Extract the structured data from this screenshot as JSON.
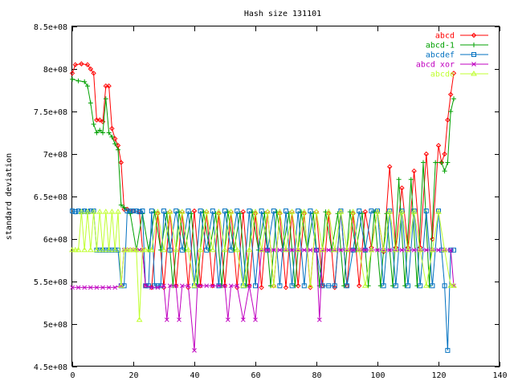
{
  "chart_data": {
    "type": "line",
    "title": "Hash size 131101",
    "xlabel": "",
    "ylabel": "standard deviation",
    "xlim": [
      0,
      140
    ],
    "ylim": [
      450000000,
      850000000
    ],
    "x_ticks": [
      0,
      20,
      40,
      60,
      80,
      100,
      120,
      140
    ],
    "x_tick_labels": [
      "0",
      "20",
      "40",
      "60",
      "80",
      "100",
      "120",
      "140"
    ],
    "y_ticks": [
      450000000,
      500000000,
      550000000,
      600000000,
      650000000,
      700000000,
      750000000,
      800000000,
      850000000
    ],
    "y_tick_labels": [
      "4.5e+08",
      "5e+08",
      "5.5e+08",
      "6e+08",
      "6.5e+08",
      "7e+08",
      "7.5e+08",
      "8e+08",
      "8.5e+08"
    ],
    "grid": false,
    "legend_position": "top-right",
    "series": [
      {
        "name": "abcd",
        "color": "#ff0000",
        "marker": "diamond",
        "x": [
          0,
          1,
          3,
          5,
          6,
          7,
          8,
          9,
          10,
          11,
          12,
          13,
          14,
          15,
          16,
          17,
          18,
          20,
          22,
          24,
          26,
          28,
          30,
          32,
          34,
          36,
          38,
          40,
          42,
          44,
          46,
          48,
          50,
          52,
          54,
          56,
          58,
          60,
          62,
          64,
          66,
          68,
          70,
          72,
          74,
          76,
          78,
          80,
          82,
          84,
          86,
          88,
          90,
          92,
          94,
          96,
          98,
          100,
          102,
          104,
          106,
          108,
          110,
          112,
          114,
          116,
          118,
          120,
          121,
          122,
          123,
          124,
          125
        ],
        "y": [
          795000000,
          805000000,
          806000000,
          805000000,
          800000000,
          795000000,
          740000000,
          740000000,
          738000000,
          780000000,
          780000000,
          730000000,
          718000000,
          710000000,
          690000000,
          635000000,
          635000000,
          633000000,
          632000000,
          545000000,
          543000000,
          630000000,
          543000000,
          632000000,
          545000000,
          632000000,
          543000000,
          633000000,
          545000000,
          632000000,
          545000000,
          630000000,
          545000000,
          632000000,
          543000000,
          632000000,
          545000000,
          630000000,
          543000000,
          632000000,
          545000000,
          630000000,
          543000000,
          632000000,
          545000000,
          630000000,
          543000000,
          632000000,
          545000000,
          630000000,
          543000000,
          632000000,
          545000000,
          630000000,
          545000000,
          632000000,
          590000000,
          632000000,
          585000000,
          685000000,
          590000000,
          660000000,
          590000000,
          680000000,
          590000000,
          700000000,
          600000000,
          710000000,
          690000000,
          700000000,
          740000000,
          770000000,
          795000000
        ]
      },
      {
        "name": "abcd-1",
        "color": "#00a000",
        "marker": "plus",
        "x": [
          0,
          2,
          4,
          5,
          6,
          7,
          8,
          9,
          10,
          11,
          12,
          13,
          14,
          15,
          16,
          17,
          19,
          21,
          23,
          25,
          27,
          29,
          31,
          33,
          35,
          37,
          39,
          41,
          43,
          45,
          47,
          49,
          51,
          53,
          55,
          57,
          59,
          61,
          63,
          65,
          67,
          69,
          71,
          73,
          75,
          77,
          79,
          81,
          83,
          85,
          87,
          89,
          91,
          93,
          95,
          97,
          99,
          101,
          103,
          105,
          107,
          109,
          111,
          113,
          115,
          117,
          119,
          121,
          122,
          123,
          124,
          125
        ],
        "y": [
          788000000,
          786000000,
          785000000,
          780000000,
          760000000,
          735000000,
          725000000,
          728000000,
          725000000,
          765000000,
          725000000,
          720000000,
          712000000,
          705000000,
          640000000,
          637000000,
          630000000,
          587000000,
          630000000,
          587000000,
          632000000,
          587000000,
          630000000,
          545000000,
          632000000,
          587000000,
          630000000,
          545000000,
          632000000,
          587000000,
          630000000,
          545000000,
          632000000,
          587000000,
          630000000,
          545000000,
          632000000,
          587000000,
          630000000,
          545000000,
          632000000,
          587000000,
          630000000,
          545000000,
          632000000,
          587000000,
          630000000,
          545000000,
          632000000,
          587000000,
          630000000,
          545000000,
          632000000,
          587000000,
          630000000,
          545000000,
          632000000,
          545000000,
          630000000,
          545000000,
          670000000,
          545000000,
          670000000,
          545000000,
          690000000,
          545000000,
          690000000,
          690000000,
          680000000,
          690000000,
          750000000,
          765000000
        ]
      },
      {
        "name": "abcdef",
        "color": "#0070c0",
        "marker": "square",
        "x": [
          0,
          1,
          2,
          3,
          4,
          5,
          6,
          7,
          8,
          9,
          10,
          11,
          12,
          13,
          14,
          15,
          16,
          17,
          18,
          19,
          20,
          21,
          22,
          23,
          24,
          25,
          26,
          27,
          28,
          29,
          30,
          32,
          34,
          36,
          38,
          40,
          42,
          44,
          46,
          48,
          50,
          52,
          54,
          56,
          58,
          60,
          62,
          64,
          66,
          68,
          70,
          72,
          74,
          76,
          78,
          80,
          82,
          84,
          86,
          88,
          90,
          92,
          94,
          96,
          98,
          100,
          102,
          104,
          106,
          108,
          110,
          112,
          114,
          116,
          118,
          120,
          121,
          122,
          123,
          124,
          125
        ],
        "y": [
          633000000,
          632000000,
          633000000,
          632000000,
          633000000,
          632000000,
          633000000,
          633000000,
          587000000,
          587000000,
          587000000,
          587000000,
          587000000,
          587000000,
          587000000,
          587000000,
          545000000,
          545000000,
          633000000,
          633000000,
          633000000,
          633000000,
          632000000,
          633000000,
          545000000,
          545000000,
          633000000,
          545000000,
          545000000,
          545000000,
          633000000,
          587000000,
          633000000,
          587000000,
          633000000,
          545000000,
          633000000,
          587000000,
          633000000,
          545000000,
          633000000,
          587000000,
          633000000,
          545000000,
          633000000,
          545000000,
          633000000,
          587000000,
          633000000,
          545000000,
          633000000,
          545000000,
          633000000,
          545000000,
          633000000,
          587000000,
          545000000,
          545000000,
          545000000,
          633000000,
          545000000,
          587000000,
          633000000,
          587000000,
          633000000,
          633000000,
          545000000,
          633000000,
          545000000,
          633000000,
          545000000,
          633000000,
          545000000,
          633000000,
          545000000,
          633000000,
          587000000,
          545000000,
          469000000,
          587000000,
          587000000
        ]
      },
      {
        "name": "abcd xor",
        "color": "#c000c0",
        "marker": "cross",
        "x": [
          0,
          2,
          4,
          6,
          8,
          10,
          12,
          14,
          16,
          17,
          18,
          20,
          22,
          23,
          24,
          26,
          28,
          30,
          31,
          32,
          34,
          35,
          36,
          38,
          40,
          41,
          42,
          44,
          46,
          48,
          50,
          51,
          52,
          54,
          56,
          58,
          60,
          62,
          64,
          66,
          68,
          70,
          72,
          74,
          76,
          78,
          80,
          81,
          82,
          84,
          86,
          88,
          90,
          92,
          94,
          96,
          98,
          100,
          102,
          104,
          106,
          108,
          110,
          112,
          114,
          116,
          118,
          120,
          122,
          124,
          125
        ],
        "y": [
          543000000,
          543000000,
          543000000,
          543000000,
          543000000,
          543000000,
          543000000,
          543000000,
          545000000,
          587000000,
          587000000,
          587000000,
          587000000,
          587000000,
          545000000,
          543000000,
          543000000,
          545000000,
          505000000,
          545000000,
          545000000,
          505000000,
          545000000,
          545000000,
          469000000,
          545000000,
          545000000,
          545000000,
          545000000,
          545000000,
          545000000,
          505000000,
          545000000,
          545000000,
          505000000,
          545000000,
          505000000,
          587000000,
          587000000,
          587000000,
          587000000,
          587000000,
          587000000,
          587000000,
          587000000,
          587000000,
          587000000,
          505000000,
          587000000,
          587000000,
          587000000,
          587000000,
          587000000,
          587000000,
          587000000,
          587000000,
          587000000,
          587000000,
          587000000,
          587000000,
          587000000,
          587000000,
          587000000,
          587000000,
          587000000,
          587000000,
          587000000,
          587000000,
          587000000,
          587000000,
          545000000
        ]
      },
      {
        "name": "abcde",
        "color": "#c0ff30",
        "marker": "triangle",
        "x": [
          0,
          1,
          2,
          3,
          4,
          5,
          6,
          7,
          8,
          9,
          10,
          11,
          12,
          13,
          14,
          15,
          16,
          17,
          18,
          19,
          20,
          21,
          22,
          23,
          24,
          26,
          28,
          30,
          32,
          34,
          36,
          38,
          40,
          42,
          44,
          46,
          48,
          50,
          52,
          54,
          56,
          58,
          60,
          62,
          64,
          66,
          68,
          70,
          72,
          74,
          76,
          78,
          80,
          82,
          84,
          86,
          88,
          90,
          92,
          94,
          96,
          98,
          100,
          102,
          104,
          106,
          108,
          110,
          112,
          114,
          116,
          118,
          120,
          122,
          124,
          125
        ],
        "y": [
          587000000,
          587000000,
          587000000,
          632000000,
          587000000,
          632000000,
          587000000,
          632000000,
          587000000,
          632000000,
          587000000,
          632000000,
          587000000,
          632000000,
          587000000,
          632000000,
          545000000,
          587000000,
          587000000,
          587000000,
          587000000,
          587000000,
          505000000,
          587000000,
          587000000,
          587000000,
          632000000,
          587000000,
          632000000,
          587000000,
          632000000,
          587000000,
          545000000,
          587000000,
          632000000,
          587000000,
          632000000,
          587000000,
          632000000,
          587000000,
          545000000,
          587000000,
          632000000,
          587000000,
          632000000,
          545000000,
          632000000,
          587000000,
          632000000,
          587000000,
          632000000,
          545000000,
          632000000,
          587000000,
          632000000,
          587000000,
          632000000,
          587000000,
          632000000,
          587000000,
          545000000,
          587000000,
          632000000,
          587000000,
          632000000,
          587000000,
          632000000,
          587000000,
          632000000,
          587000000,
          545000000,
          587000000,
          632000000,
          587000000,
          545000000,
          545000000
        ]
      }
    ]
  }
}
